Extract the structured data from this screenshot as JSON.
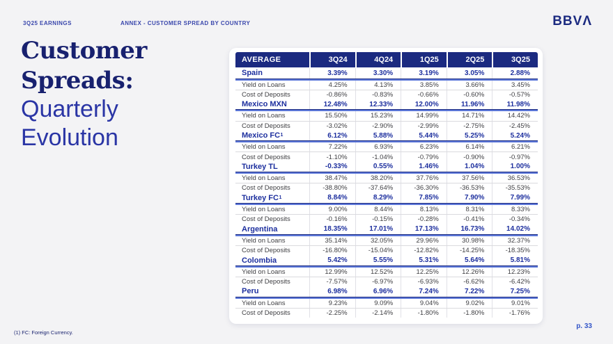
{
  "header": {
    "eyebrow_left": "3Q25 EARNINGS",
    "eyebrow_center": "ANNEX - CUSTOMER SPREAD BY COUNTRY",
    "logo": "BBVΛ"
  },
  "title": {
    "main": "Customer Spreads:",
    "sub": "Quarterly Evolution"
  },
  "table": {
    "columns": [
      "AVERAGE",
      "3Q24",
      "4Q24",
      "1Q25",
      "2Q25",
      "3Q25"
    ],
    "row_labels": {
      "yield": "Yield on Loans",
      "cost": "Cost of Deposits"
    },
    "sections": [
      {
        "country": "Spain",
        "sup": "",
        "spread": [
          "3.39%",
          "3.30%",
          "3.19%",
          "3.05%",
          "2.88%"
        ],
        "yield_on_loans": [
          "4.25%",
          "4.13%",
          "3.85%",
          "3.66%",
          "3.45%"
        ],
        "cost_of_deposits": [
          "-0.86%",
          "-0.83%",
          "-0.66%",
          "-0.60%",
          "-0.57%"
        ]
      },
      {
        "country": "Mexico MXN",
        "sup": "",
        "spread": [
          "12.48%",
          "12.33%",
          "12.00%",
          "11.96%",
          "11.98%"
        ],
        "yield_on_loans": [
          "15.50%",
          "15.23%",
          "14.99%",
          "14.71%",
          "14.42%"
        ],
        "cost_of_deposits": [
          "-3.02%",
          "-2.90%",
          "-2.99%",
          "-2.75%",
          "-2.45%"
        ]
      },
      {
        "country": "Mexico FC",
        "sup": "1",
        "spread": [
          "6.12%",
          "5.88%",
          "5.44%",
          "5.25%",
          "5.24%"
        ],
        "yield_on_loans": [
          "7.22%",
          "6.93%",
          "6.23%",
          "6.14%",
          "6.21%"
        ],
        "cost_of_deposits": [
          "-1.10%",
          "-1.04%",
          "-0.79%",
          "-0.90%",
          "-0.97%"
        ]
      },
      {
        "country": "Turkey TL",
        "sup": "",
        "spread": [
          "-0.33%",
          "0.55%",
          "1.46%",
          "1.04%",
          "1.00%"
        ],
        "yield_on_loans": [
          "38.47%",
          "38.20%",
          "37.76%",
          "37.56%",
          "36.53%"
        ],
        "cost_of_deposits": [
          "-38.80%",
          "-37.64%",
          "-36.30%",
          "-36.53%",
          "-35.53%"
        ]
      },
      {
        "country": "Turkey FC",
        "sup": "1",
        "spread": [
          "8.84%",
          "8.29%",
          "7.85%",
          "7.90%",
          "7.99%"
        ],
        "yield_on_loans": [
          "9.00%",
          "8.44%",
          "8.13%",
          "8.31%",
          "8.33%"
        ],
        "cost_of_deposits": [
          "-0.16%",
          "-0.15%",
          "-0.28%",
          "-0.41%",
          "-0.34%"
        ]
      },
      {
        "country": "Argentina",
        "sup": "",
        "spread": [
          "18.35%",
          "17.01%",
          "17.13%",
          "16.73%",
          "14.02%"
        ],
        "yield_on_loans": [
          "35.14%",
          "32.05%",
          "29.96%",
          "30.98%",
          "32.37%"
        ],
        "cost_of_deposits": [
          "-16.80%",
          "-15.04%",
          "-12.82%",
          "-14.25%",
          "-18.35%"
        ]
      },
      {
        "country": "Colombia",
        "sup": "",
        "spread": [
          "5.42%",
          "5.55%",
          "5.31%",
          "5.64%",
          "5.81%"
        ],
        "yield_on_loans": [
          "12.99%",
          "12.52%",
          "12.25%",
          "12.26%",
          "12.23%"
        ],
        "cost_of_deposits": [
          "-7.57%",
          "-6.97%",
          "-6.93%",
          "-6.62%",
          "-6.42%"
        ]
      },
      {
        "country": "Peru",
        "sup": "",
        "spread": [
          "6.98%",
          "6.96%",
          "7.24%",
          "7.22%",
          "7.25%"
        ],
        "yield_on_loans": [
          "9.23%",
          "9.09%",
          "9.04%",
          "9.02%",
          "9.01%"
        ],
        "cost_of_deposits": [
          "-2.25%",
          "-2.14%",
          "-1.80%",
          "-1.80%",
          "-1.76%"
        ]
      }
    ]
  },
  "footer": {
    "footnote": "(1) FC: Foreign Currency.",
    "page": "p. 33"
  },
  "colors": {
    "navy": "#1b2a80",
    "country_blue": "#1d2f9e",
    "divider_blue": "#5d78d9",
    "page_blue": "#3355c8",
    "background": "#f3f3f5"
  }
}
